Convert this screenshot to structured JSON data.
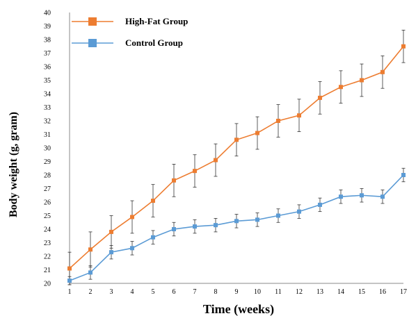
{
  "chart_data": {
    "type": "line",
    "xlabel": "Time (weeks)",
    "ylabel": "Body weight (g, gram)",
    "x": [
      1,
      2,
      3,
      4,
      5,
      6,
      7,
      8,
      9,
      10,
      11,
      12,
      13,
      14,
      15,
      16,
      17
    ],
    "xlim": [
      1,
      17
    ],
    "ylim": [
      20,
      40
    ],
    "yticks": [
      20,
      21,
      22,
      23,
      24,
      25,
      26,
      27,
      28,
      29,
      30,
      31,
      32,
      33,
      34,
      35,
      36,
      37,
      38,
      39,
      40
    ],
    "grid": false,
    "legend_position": "top-left",
    "series": [
      {
        "name": "High-Fat Group",
        "color": "#ED7D31",
        "marker": "square",
        "values": [
          21.1,
          22.5,
          23.8,
          24.9,
          26.1,
          27.6,
          28.3,
          29.1,
          30.6,
          31.1,
          32.0,
          32.4,
          33.7,
          34.5,
          35.0,
          35.6,
          37.5
        ],
        "error": [
          1.2,
          1.3,
          1.2,
          1.2,
          1.2,
          1.2,
          1.2,
          1.2,
          1.2,
          1.2,
          1.2,
          1.2,
          1.2,
          1.2,
          1.2,
          1.2,
          1.2
        ]
      },
      {
        "name": "Control Group",
        "color": "#5B9BD5",
        "marker": "square",
        "values": [
          20.2,
          20.8,
          22.3,
          22.6,
          23.4,
          24.0,
          24.2,
          24.3,
          24.6,
          24.7,
          25.0,
          25.3,
          25.8,
          26.4,
          26.5,
          26.4,
          28.0
        ],
        "error": [
          0.3,
          0.5,
          0.5,
          0.5,
          0.5,
          0.5,
          0.5,
          0.5,
          0.5,
          0.5,
          0.5,
          0.5,
          0.5,
          0.5,
          0.5,
          0.5,
          0.5
        ]
      }
    ]
  }
}
